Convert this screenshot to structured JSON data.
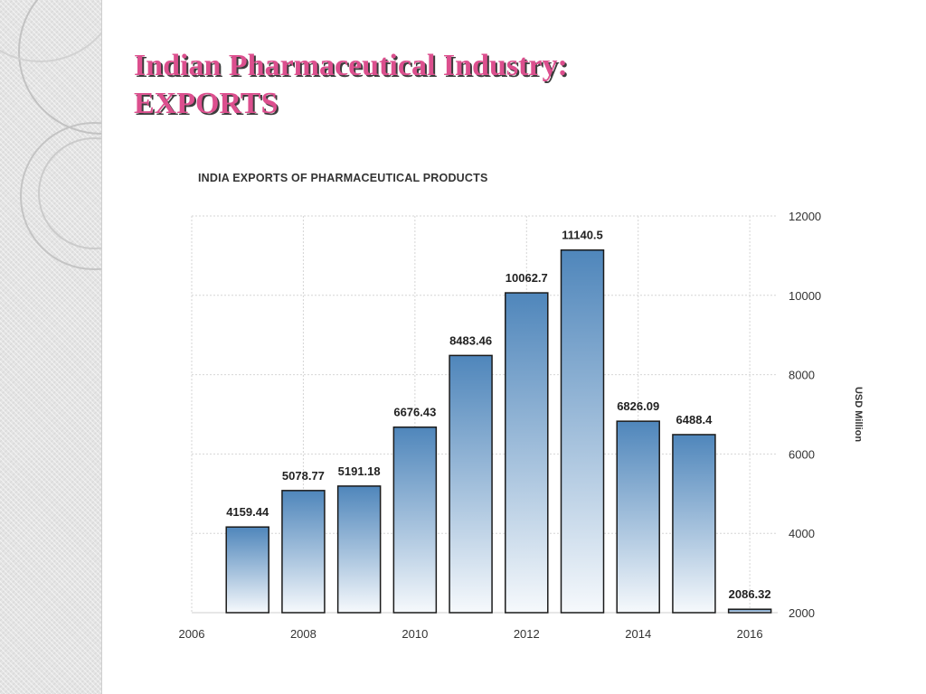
{
  "slide": {
    "title_line1": "Indian Pharmaceutical Industry:",
    "title_line2": "EXPORTS",
    "accent_color": "#dc4f8e"
  },
  "chart_data": {
    "type": "bar",
    "title": "INDIA EXPORTS OF PHARMACEUTICAL PRODUCTS",
    "xlabel": "",
    "ylabel": "USD Million",
    "x": [
      2007,
      2008,
      2009,
      2010,
      2011,
      2012,
      2013,
      2014,
      2015,
      2016
    ],
    "values": [
      4159.44,
      5078.77,
      5191.18,
      6676.43,
      8483.46,
      10062.7,
      11140.5,
      6826.09,
      6488.4,
      2086.32
    ],
    "value_labels": [
      "4159.44",
      "5078.77",
      "5191.18",
      "6676.43",
      "8483.46",
      "10062.7",
      "11140.5",
      "6826.09",
      "6488.4",
      "2086.32"
    ],
    "xticks": [
      "2006",
      "2008",
      "2010",
      "2012",
      "2014",
      "2016"
    ],
    "yticks": [
      "2000",
      "4000",
      "6000",
      "8000",
      "10000",
      "12000"
    ],
    "xlim": [
      2006,
      2016.5
    ],
    "ylim": [
      2000,
      12000
    ],
    "y_axis_side": "right",
    "grid": true,
    "bar_colors": {
      "top": "#4f86bb",
      "bottom": "#f6f9fc"
    }
  }
}
